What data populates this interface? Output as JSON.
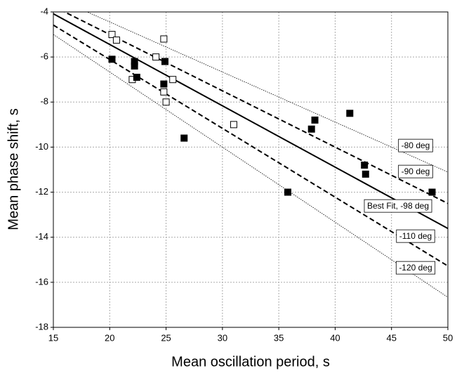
{
  "chart_data": {
    "type": "scatter",
    "x_label": "Mean oscillation  period, s",
    "y_label": "Mean phase shift, s",
    "xlim": [
      15,
      50
    ],
    "xticks": [
      15,
      20,
      25,
      30,
      35,
      40,
      45,
      50
    ],
    "ylim": [
      -18,
      -4
    ],
    "yticks": [
      -18,
      -16,
      -14,
      -12,
      -10,
      -8,
      -6,
      -4
    ],
    "grid": true,
    "series": [
      {
        "name": "-80 deg",
        "type": "line",
        "dash": "dotted",
        "color": "#000000",
        "x": [
          15,
          50
        ],
        "values": [
          -3.333,
          -11.111
        ]
      },
      {
        "name": "-90 deg",
        "type": "line",
        "dash": "dashed",
        "color": "#000000",
        "x": [
          15,
          50
        ],
        "values": [
          -3.75,
          -12.5
        ]
      },
      {
        "name": "Best Fit, -98 deg",
        "type": "line",
        "dash": "solid",
        "color": "#000000",
        "x": [
          15,
          50
        ],
        "values": [
          -4.083,
          -13.611
        ]
      },
      {
        "name": "-110 deg",
        "type": "line",
        "dash": "dashed",
        "color": "#000000",
        "x": [
          15,
          50
        ],
        "values": [
          -4.583,
          -15.278
        ]
      },
      {
        "name": "-120 deg",
        "type": "line",
        "dash": "dotted",
        "color": "#000000",
        "x": [
          15,
          50
        ],
        "values": [
          -5.0,
          -16.667
        ]
      },
      {
        "type": "scatter",
        "marker": "open",
        "color": "#000000",
        "x": [
          20.2,
          20.6,
          24.8,
          24.1,
          22.0,
          24.8,
          25.0,
          25.6,
          31.0
        ],
        "values": [
          -5.0,
          -5.25,
          -5.2,
          -6.0,
          -7.0,
          -7.55,
          -8.0,
          -7.0,
          -9.0
        ]
      },
      {
        "type": "scatter",
        "marker": "filled",
        "color": "#000000",
        "x": [
          20.2,
          22.2,
          22.2,
          22.4,
          24.9,
          24.8,
          26.6,
          35.8,
          37.9,
          38.2,
          41.3,
          42.6,
          42.7,
          48.6
        ],
        "values": [
          -6.1,
          -6.2,
          -6.4,
          -6.9,
          -6.2,
          -7.2,
          -9.6,
          -12.0,
          -9.2,
          -8.8,
          -8.5,
          -10.8,
          -11.2,
          -12.0
        ]
      }
    ]
  }
}
